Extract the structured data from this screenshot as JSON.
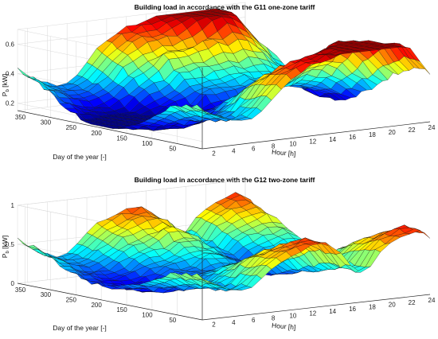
{
  "chart_data": [
    {
      "type": "surface",
      "title": "Building load in accordance with the G11 one-zone tariff",
      "zlabel": "P_b [kW]",
      "zlabel_main": "P",
      "zlabel_sub": "b",
      "zlabel_unit": "[kW]",
      "xlabel": "Hour [h]",
      "ylabel": "Day of the year [-]",
      "x_ticks": [
        2,
        4,
        6,
        8,
        10,
        12,
        14,
        16,
        18,
        20,
        22,
        24
      ],
      "y_ticks": [
        350,
        300,
        250,
        200,
        150,
        100,
        50
      ],
      "z_ticks": [
        "0.2",
        "0.4",
        "0.6"
      ],
      "xlim": [
        1,
        24
      ],
      "ylim": [
        1,
        365
      ],
      "zlim": [
        0.15,
        0.7
      ],
      "colormap": "jet",
      "grid": true,
      "hour_profile_kw": [
        0.32,
        0.29,
        0.26,
        0.24,
        0.23,
        0.24,
        0.27,
        0.32,
        0.37,
        0.41,
        0.44,
        0.46,
        0.47,
        0.48,
        0.49,
        0.51,
        0.54,
        0.58,
        0.61,
        0.59,
        0.55,
        0.49,
        0.42,
        0.36
      ],
      "seasonal_amplitude_kw": 0.13,
      "peak_kw": 0.68
    },
    {
      "type": "surface",
      "title": "Building load in accordance with the G12 two-zone tariff",
      "zlabel": "P_b [kW]",
      "zlabel_main": "P",
      "zlabel_sub": "b",
      "zlabel_unit": "[kW]",
      "xlabel": "Hour [h]",
      "ylabel": "Day of the year [-]",
      "x_ticks": [
        2,
        4,
        6,
        8,
        10,
        12,
        14,
        16,
        18,
        20,
        22,
        24
      ],
      "y_ticks": [
        350,
        300,
        250,
        200,
        150,
        100,
        50
      ],
      "z_ticks": [
        "0",
        "0.5",
        "1"
      ],
      "xlim": [
        1,
        24
      ],
      "ylim": [
        1,
        365
      ],
      "zlim": [
        0,
        1
      ],
      "colormap": "jet",
      "grid": true,
      "hour_profile_kw": [
        0.42,
        0.36,
        0.3,
        0.26,
        0.24,
        0.27,
        0.34,
        0.42,
        0.48,
        0.52,
        0.56,
        0.58,
        0.6,
        0.56,
        0.48,
        0.35,
        0.3,
        0.34,
        0.45,
        0.52,
        0.56,
        0.6,
        0.62,
        0.55
      ],
      "seasonal_amplitude_kw": 0.18,
      "peak_kw": 0.95
    }
  ]
}
